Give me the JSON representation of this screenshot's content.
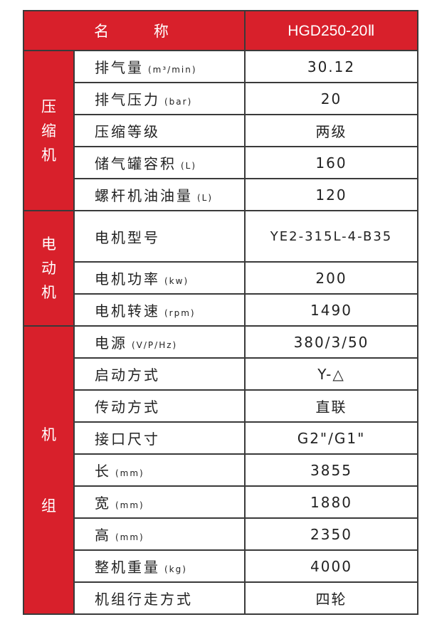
{
  "header": {
    "name": "名 称",
    "model": "HGD250-20Ⅱ"
  },
  "colors": {
    "accent": "#d8202b",
    "border": "#3a3a3a"
  },
  "groups": [
    {
      "label": "压缩机",
      "rows": [
        {
          "label": "排气量",
          "unit": "(m³/min)",
          "value": "30.12"
        },
        {
          "label": "排气压力",
          "unit": "(bar)",
          "value": "20"
        },
        {
          "label": "压缩等级",
          "unit": "",
          "value": "两级"
        },
        {
          "label": "储气罐容积",
          "unit": "(L)",
          "value": "160"
        },
        {
          "label": "螺杆机油油量",
          "unit": "(L)",
          "value": "120"
        }
      ]
    },
    {
      "label": "电动机",
      "rows": [
        {
          "label": "电机型号",
          "unit": "",
          "value": "YE2-315L-4-B35"
        },
        {
          "label": "电机功率",
          "unit": "(kw)",
          "value": "200"
        },
        {
          "label": "电机转速",
          "unit": "(rpm)",
          "value": "1490"
        }
      ]
    },
    {
      "label": "机组",
      "rows": [
        {
          "label": "电源",
          "unit": "(V/P/Hz)",
          "value": "380/3/50"
        },
        {
          "label": "启动方式",
          "unit": "",
          "value": "Y-△"
        },
        {
          "label": "传动方式",
          "unit": "",
          "value": "直联"
        },
        {
          "label": "接口尺寸",
          "unit": "",
          "value": "G2\"/G1\""
        },
        {
          "label": "长",
          "unit": "(mm)",
          "value": "3855"
        },
        {
          "label": "宽",
          "unit": "(mm)",
          "value": "1880"
        },
        {
          "label": "高",
          "unit": "(mm)",
          "value": "2350"
        },
        {
          "label": "整机重量",
          "unit": "(kg)",
          "value": "4000"
        },
        {
          "label": "机组行走方式",
          "unit": "",
          "value": "四轮"
        }
      ]
    }
  ]
}
